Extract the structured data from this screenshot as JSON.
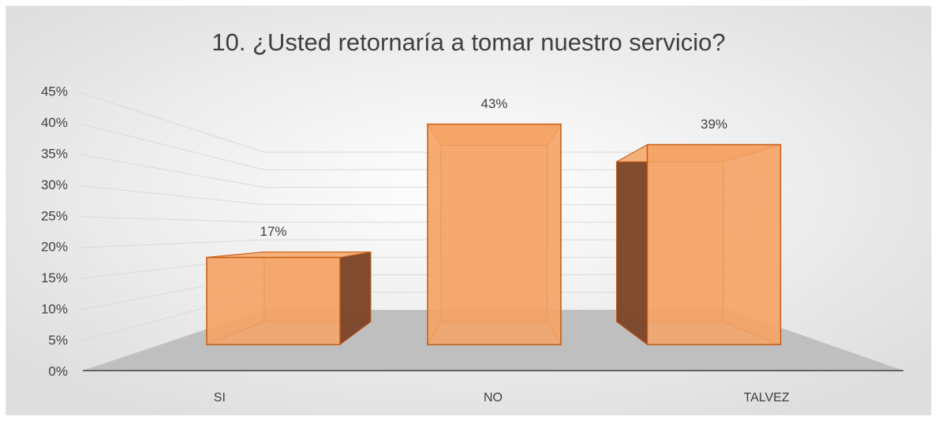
{
  "chart_data": {
    "type": "bar3d",
    "title": "10. ¿Usted retornaría a tomar nuestro servicio?",
    "categories": [
      "SI",
      "NO",
      "TALVEZ"
    ],
    "values": [
      17,
      43,
      39
    ],
    "value_labels": [
      "17%",
      "43%",
      "39%"
    ],
    "color": "#f4a365",
    "ylim": [
      0,
      45
    ],
    "yticks": [
      {
        "value": 0,
        "label": "0%"
      },
      {
        "value": 5,
        "label": "5%"
      },
      {
        "value": 10,
        "label": "10%"
      },
      {
        "value": 15,
        "label": "15%"
      },
      {
        "value": 20,
        "label": "20%"
      },
      {
        "value": 25,
        "label": "25%"
      },
      {
        "value": 30,
        "label": "30%"
      },
      {
        "value": 35,
        "label": "35%"
      },
      {
        "value": 40,
        "label": "40%"
      },
      {
        "value": 45,
        "label": "45%"
      }
    ],
    "grid": true
  }
}
